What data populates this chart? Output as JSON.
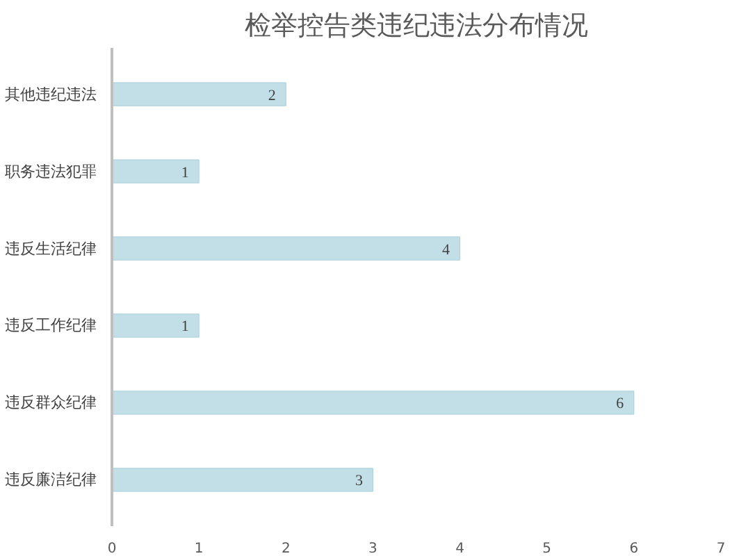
{
  "chart_data": {
    "type": "bar",
    "orientation": "horizontal",
    "title": "检举控告类违纪违法分布情况",
    "categories": [
      "其他违纪违法",
      "职务违法犯罪",
      "违反生活纪律",
      "违反工作纪律",
      "违反群众纪律",
      "违反廉洁纪律"
    ],
    "values": [
      2,
      1,
      4,
      1,
      6,
      3
    ],
    "color": "#c2dfe8",
    "xlim": [
      0,
      7
    ],
    "xticks": [
      0,
      1,
      2,
      3,
      4,
      5,
      6,
      7
    ],
    "data_labels": true,
    "grid": false
  }
}
